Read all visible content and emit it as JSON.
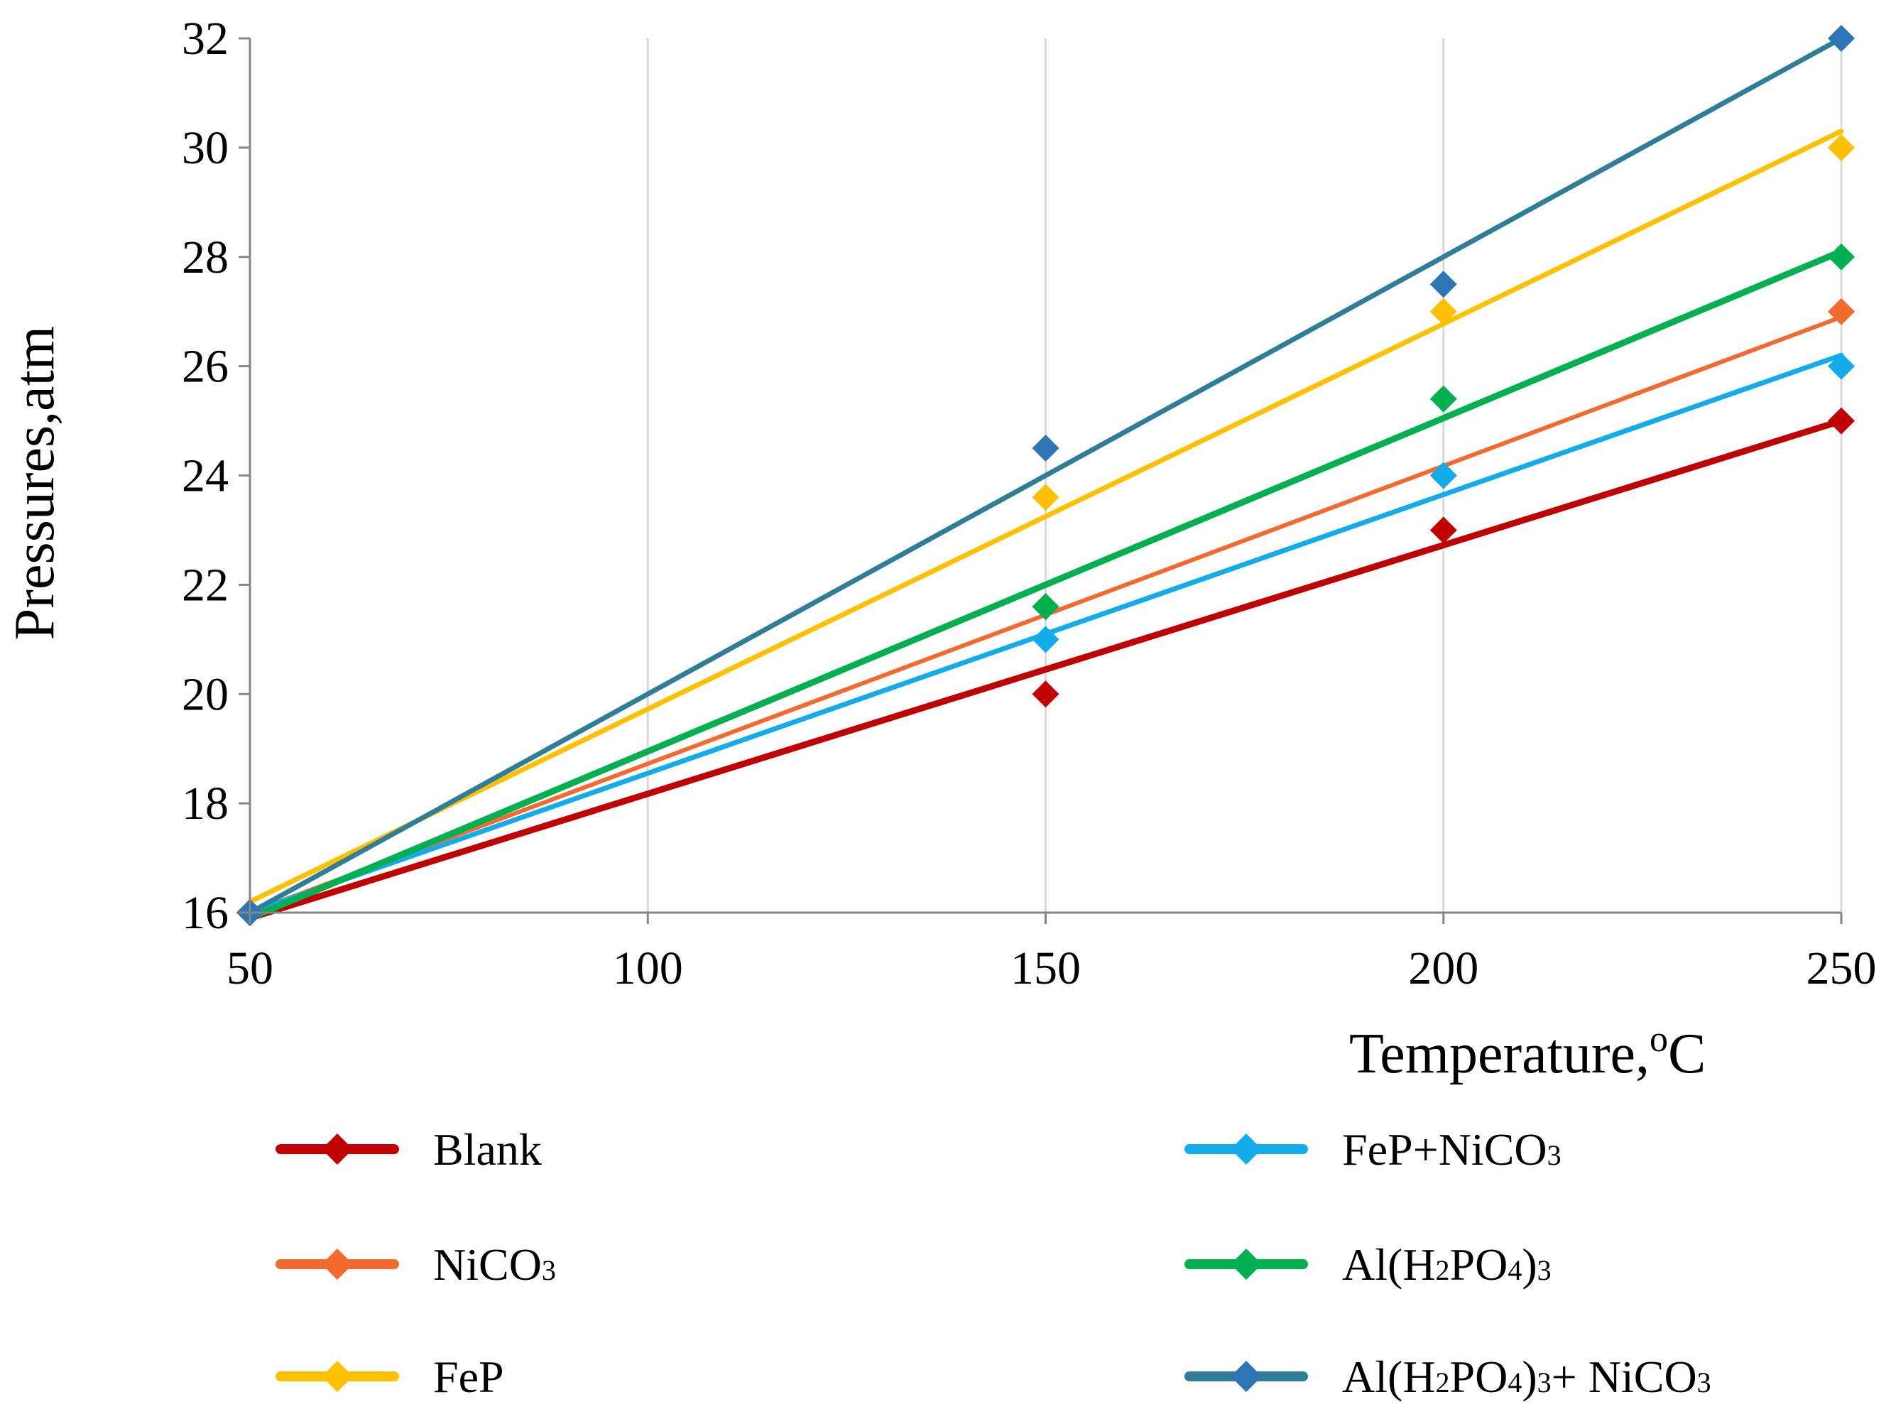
{
  "chart_data": {
    "type": "scatter",
    "title": "",
    "xlabel": "Temperature,",
    "xlabel_unit_sup": "o",
    "xlabel_unit": "C",
    "ylabel": "Pressures,atm",
    "xlim": [
      50,
      250
    ],
    "ylim": [
      16,
      32
    ],
    "x_ticks": [
      50,
      100,
      150,
      200,
      250
    ],
    "y_ticks": [
      16,
      18,
      20,
      22,
      24,
      26,
      28,
      30,
      32
    ],
    "x_tick_labels": [
      "50",
      "100",
      "150",
      "200",
      "250"
    ],
    "y_tick_labels": [
      "16",
      "18",
      "20",
      "22",
      "24",
      "26",
      "28",
      "30",
      "32"
    ],
    "grid": "vertical",
    "legend_position": "bottom",
    "series": [
      {
        "name": "Blank",
        "color": "#C00000",
        "marker_color": "#C00000",
        "x": [
          50,
          150,
          200,
          250
        ],
        "y": [
          16,
          20,
          23,
          25
        ],
        "trendline": [
          [
            50,
            15.9
          ],
          [
            250,
            25.0
          ]
        ]
      },
      {
        "name": "NiCO3",
        "color": "#F36A31",
        "marker_color": "#F36A31",
        "x": [
          50,
          150,
          200,
          250
        ],
        "y": [
          16,
          21.6,
          24,
          27
        ],
        "trendline": [
          [
            50,
            16.0
          ],
          [
            250,
            26.9
          ]
        ]
      },
      {
        "name": "FeP",
        "color": "#FFC000",
        "marker_color": "#FFC000",
        "x": [
          50,
          150,
          200,
          250
        ],
        "y": [
          16,
          23.6,
          27,
          30
        ],
        "trendline": [
          [
            50,
            16.2
          ],
          [
            250,
            30.3
          ]
        ]
      },
      {
        "name": "FeP+NiCO3",
        "color": "#13ABEA",
        "marker_color": "#13ABEA",
        "x": [
          50,
          150,
          200,
          250
        ],
        "y": [
          16,
          21,
          24,
          26
        ],
        "trendline": [
          [
            50,
            16.0
          ],
          [
            250,
            26.2
          ]
        ]
      },
      {
        "name": "Al(H2PO4)3",
        "color": "#00B050",
        "marker_color": "#00B050",
        "x": [
          50,
          150,
          200,
          250
        ],
        "y": [
          16,
          21.6,
          25.4,
          28
        ],
        "trendline": [
          [
            50,
            15.9
          ],
          [
            250,
            28.1
          ]
        ]
      },
      {
        "name": "Al(H2PO4)3+ NiCO3",
        "color": "#2F7D96",
        "marker_color": "#2E75B6",
        "x": [
          50,
          150,
          200,
          250
        ],
        "y": [
          16,
          24.5,
          27.5,
          32
        ],
        "trendline": [
          [
            50,
            16.0
          ],
          [
            250,
            32.0
          ]
        ]
      }
    ]
  }
}
